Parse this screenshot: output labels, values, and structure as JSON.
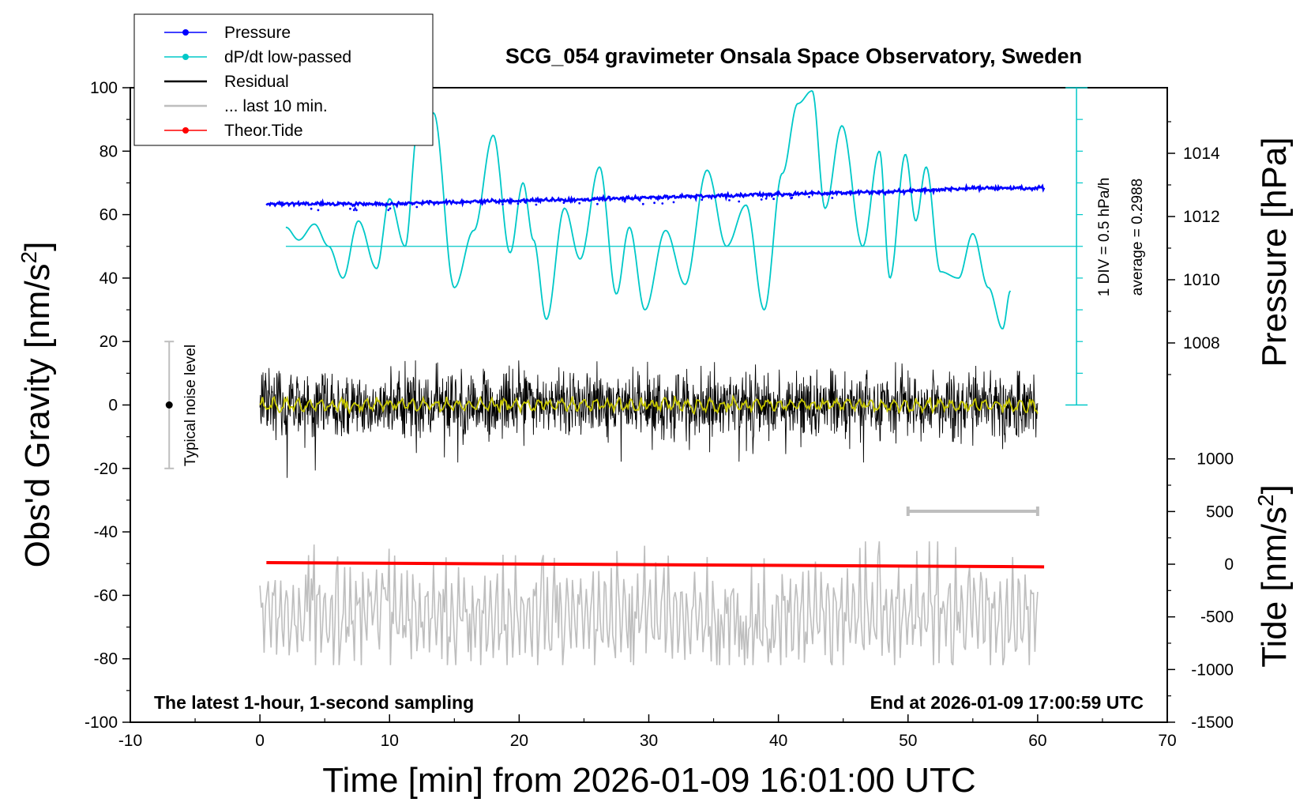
{
  "chart_data": {
    "type": "line",
    "title": "SCG_054 gravimeter Onsala Space Observatory, Sweden",
    "xlabel": "Time [min] from 2026-01-09 16:01:00 UTC",
    "ylabel_left": "Obs'd Gravity [nm/s",
    "ylabel_left_sup": "2",
    "ylabel_left_close": "]",
    "ylabel_right_pressure": "Pressure [hPa]",
    "ylabel_right_tide": "Tide [nm/s",
    "ylabel_right_tide_sup": "2",
    "ylabel_right_tide_close": "]",
    "xlim": [
      -10,
      70
    ],
    "ylim_gravity": [
      -100,
      100
    ],
    "x_ticks": [
      "-10",
      "0",
      "10",
      "20",
      "30",
      "40",
      "50",
      "60",
      "70"
    ],
    "y_ticks_gravity": [
      "100",
      "80",
      "60",
      "40",
      "20",
      "0",
      "-20",
      "-40",
      "-60",
      "-80",
      "-100"
    ],
    "y_ticks_pressure": [
      "1014",
      "1012",
      "1010",
      "1008"
    ],
    "y_ticks_tide": [
      "1000",
      "500",
      "0",
      "-500",
      "-1000",
      "-1500"
    ],
    "legend": [
      {
        "label": "Pressure",
        "color": "#0000ff",
        "marker": true
      },
      {
        "label": "dP/dt low-passed",
        "color": "#00c8c8",
        "marker": true
      },
      {
        "label": "Residual",
        "color": "#000000",
        "marker": false
      },
      {
        "label": "... last 10 min.",
        "color": "#bebebe",
        "marker": false
      },
      {
        "label": "Theor.Tide",
        "color": "#ff0000",
        "marker": true
      }
    ],
    "dpdt_scale_label": "1 DIV = 0.5 hPa/h",
    "dpdt_average_label": "average = 0.2988",
    "noise_label": "Typical noise level",
    "footer_left": "The latest 1-hour, 1-second sampling",
    "footer_right": "End at 2026-01-09 17:00:59 UTC",
    "series": [
      {
        "name": "Pressure",
        "unit": "hPa",
        "x": [
          0.5,
          10,
          20,
          30,
          40,
          50,
          55,
          60.5
        ],
        "values": [
          1012.4,
          1012.4,
          1012.5,
          1012.6,
          1012.7,
          1012.8,
          1012.9,
          1012.9
        ]
      },
      {
        "name": "dP/dt low-passed",
        "unit": "gravity-axis units",
        "x": [
          2,
          3,
          4.2,
          5.3,
          6.4,
          7.6,
          9,
          10,
          11.2,
          12.2,
          13.4,
          15,
          16.5,
          18,
          19.3,
          20.3,
          21.1,
          22.1,
          23.5,
          24.7,
          26.2,
          27.5,
          28.5,
          29.7,
          31.3,
          32.8,
          34.5,
          36,
          37.5,
          38.9,
          40.3,
          41.5,
          42.6,
          43.6,
          44.9,
          46.5,
          47.8,
          48.6,
          49.8,
          50.6,
          51.4,
          52.5,
          53.9,
          55,
          56.2,
          57.3,
          57.9
        ],
        "values": [
          56,
          52,
          57,
          50,
          40,
          58,
          43,
          65,
          50,
          88,
          92,
          37,
          55,
          85,
          48,
          70,
          52,
          27,
          62,
          46,
          75,
          35,
          56,
          30,
          55,
          38,
          74,
          50,
          63,
          30,
          73,
          95,
          99,
          62,
          88,
          50,
          80,
          40,
          79,
          58,
          75,
          42,
          40,
          54,
          37,
          24,
          36
        ]
      },
      {
        "name": "Residual",
        "unit": "nm/s2",
        "x": [
          0,
          60
        ],
        "noise_amplitude": 13,
        "values": [
          0,
          0
        ]
      },
      {
        "name": "... last 10 min.",
        "unit": "gravity-axis units",
        "x": [
          0,
          60
        ],
        "values": [
          -66,
          -66
        ]
      },
      {
        "name": "Theor.Tide",
        "unit": "nm/s2",
        "x": [
          0.5,
          60.5
        ],
        "values": [
          15,
          -25
        ]
      }
    ]
  }
}
